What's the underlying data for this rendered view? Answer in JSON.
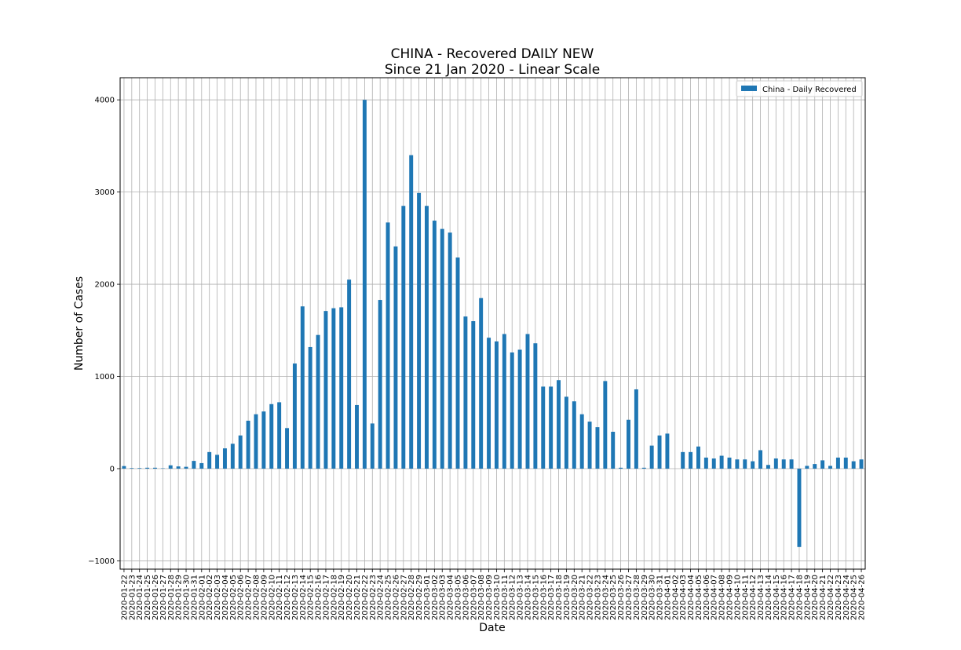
{
  "chart_data": {
    "type": "bar",
    "title_lines": [
      "CHINA - Recovered DAILY NEW",
      "Since 21 Jan 2020 - Linear Scale"
    ],
    "xlabel": "Date",
    "ylabel": "Number of Cases",
    "ylim": [
      -1090,
      4240
    ],
    "yticks": [
      -1000,
      0,
      1000,
      2000,
      3000,
      4000
    ],
    "ytick_labels": [
      "−1000",
      "0",
      "1000",
      "2000",
      "3000",
      "4000"
    ],
    "grid": true,
    "legend_position": "top-right",
    "series": [
      {
        "name": "China - Daily Recovered",
        "color": "#1f77b4",
        "values": [
          28,
          6,
          6,
          10,
          10,
          4,
          36,
          24,
          20,
          84,
          60,
          180,
          150,
          220,
          270,
          360,
          520,
          590,
          620,
          700,
          720,
          440,
          1140,
          1760,
          1320,
          1450,
          1710,
          1740,
          1750,
          2050,
          690,
          4000,
          490,
          1830,
          2670,
          2410,
          2850,
          3400,
          2990,
          2850,
          2690,
          2600,
          2560,
          2290,
          1650,
          1600,
          1850,
          1420,
          1380,
          1460,
          1260,
          1290,
          1460,
          1360,
          890,
          890,
          960,
          780,
          730,
          590,
          510,
          450,
          950,
          400,
          10,
          530,
          860,
          10,
          250,
          360,
          380,
          0,
          180,
          180,
          240,
          120,
          110,
          140,
          120,
          100,
          100,
          80,
          200,
          40,
          110,
          100,
          100,
          -850,
          30,
          50,
          90,
          30,
          120,
          120,
          80,
          100
        ]
      }
    ],
    "categories": [
      "2020-01-22",
      "2020-01-23",
      "2020-01-24",
      "2020-01-25",
      "2020-01-26",
      "2020-01-27",
      "2020-01-28",
      "2020-01-29",
      "2020-01-30",
      "2020-01-31",
      "2020-02-01",
      "2020-02-02",
      "2020-02-03",
      "2020-02-04",
      "2020-02-05",
      "2020-02-06",
      "2020-02-07",
      "2020-02-08",
      "2020-02-09",
      "2020-02-10",
      "2020-02-11",
      "2020-02-12",
      "2020-02-13",
      "2020-02-14",
      "2020-02-15",
      "2020-02-16",
      "2020-02-17",
      "2020-02-18",
      "2020-02-19",
      "2020-02-20",
      "2020-02-21",
      "2020-02-22",
      "2020-02-23",
      "2020-02-24",
      "2020-02-25",
      "2020-02-26",
      "2020-02-27",
      "2020-02-28",
      "2020-02-29",
      "2020-03-01",
      "2020-03-02",
      "2020-03-03",
      "2020-03-04",
      "2020-03-05",
      "2020-03-06",
      "2020-03-07",
      "2020-03-08",
      "2020-03-09",
      "2020-03-10",
      "2020-03-11",
      "2020-03-12",
      "2020-03-13",
      "2020-03-14",
      "2020-03-15",
      "2020-03-16",
      "2020-03-17",
      "2020-03-18",
      "2020-03-19",
      "2020-03-20",
      "2020-03-21",
      "2020-03-22",
      "2020-03-23",
      "2020-03-24",
      "2020-03-25",
      "2020-03-26",
      "2020-03-27",
      "2020-03-28",
      "2020-03-29",
      "2020-03-30",
      "2020-03-31",
      "2020-04-01",
      "2020-04-02",
      "2020-04-03",
      "2020-04-04",
      "2020-04-05",
      "2020-04-06",
      "2020-04-07",
      "2020-04-08",
      "2020-04-09",
      "2020-04-10",
      "2020-04-11",
      "2020-04-12",
      "2020-04-13",
      "2020-04-14",
      "2020-04-15",
      "2020-04-16",
      "2020-04-17",
      "2020-04-18",
      "2020-04-19",
      "2020-04-20",
      "2020-04-21",
      "2020-04-22",
      "2020-04-23",
      "2020-04-24",
      "2020-04-25",
      "2020-04-26"
    ]
  }
}
